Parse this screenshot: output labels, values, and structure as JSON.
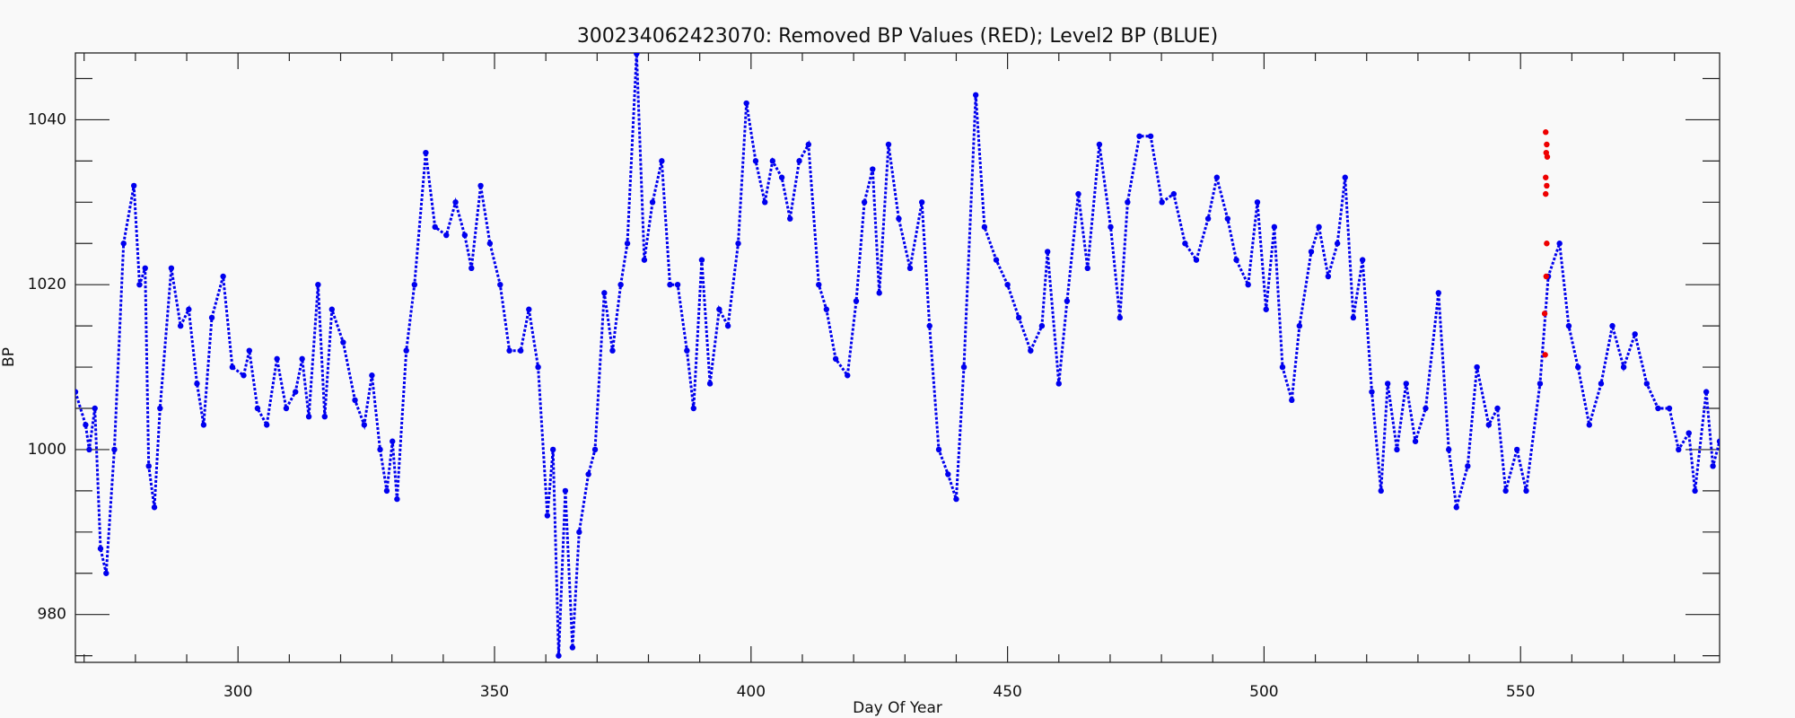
{
  "chart_data": {
    "type": "scatter",
    "title": "300234062423070: Removed BP Values (RED); Level2 BP (BLUE)",
    "xlabel": "Day Of Year",
    "ylabel": "BP",
    "xlim": [
      268.3,
      588.8
    ],
    "ylim": [
      974.2,
      1048.1
    ],
    "xticks": [
      300,
      350,
      400,
      450,
      500,
      550
    ],
    "yticks": [
      980,
      1000,
      1020,
      1040
    ],
    "xminorticks": [
      270,
      280,
      290,
      310,
      320,
      330,
      340,
      360,
      370,
      380,
      390,
      410,
      420,
      430,
      440,
      460,
      470,
      480,
      490,
      510,
      520,
      530,
      540,
      560,
      570,
      580
    ],
    "yminorticks": [
      975,
      985,
      990,
      995,
      1005,
      1010,
      1015,
      1025,
      1030,
      1035,
      1045
    ],
    "series": [
      {
        "name": "Level2 BP",
        "color": "#0000ee",
        "x": [
          268.3,
          270.3,
          271,
          272.1,
          273.2,
          274.3,
          275.9,
          277.7,
          279.7,
          280.8,
          281.9,
          282.6,
          283.7,
          284.8,
          287,
          288.8,
          290.4,
          292,
          293.3,
          294.9,
          297.1,
          298.9,
          301.1,
          302.2,
          303.8,
          305.6,
          307.6,
          309.4,
          311.2,
          312.5,
          313.8,
          315.6,
          316.9,
          318.3,
          320.5,
          322.8,
          324.6,
          326.1,
          327.7,
          329,
          330.1,
          331,
          332.8,
          334.4,
          336.6,
          338.4,
          340.6,
          342.4,
          344.2,
          345.5,
          347.3,
          349.1,
          351.1,
          352.9,
          355.1,
          356.7,
          358.5,
          360.3,
          361.4,
          362.5,
          363.8,
          365.2,
          366.5,
          368.3,
          369.6,
          371.4,
          373,
          374.6,
          375.9,
          377.7,
          379.2,
          380.8,
          382.6,
          384.2,
          385.7,
          387.5,
          388.8,
          390.4,
          392,
          393.8,
          395.5,
          397.5,
          399.1,
          400.9,
          402.7,
          404.2,
          406,
          407.6,
          409.4,
          411.2,
          413.2,
          414.7,
          416.5,
          418.8,
          420.5,
          422.1,
          423.7,
          425,
          426.8,
          428.8,
          431,
          433.3,
          434.8,
          436.6,
          438.4,
          440,
          441.5,
          443.8,
          445.5,
          447.8,
          450,
          452.2,
          454.5,
          456.7,
          457.8,
          460,
          461.6,
          463.8,
          465.6,
          467.9,
          470.1,
          471.9,
          473.4,
          475.7,
          477.9,
          480.1,
          482.4,
          484.6,
          486.8,
          489.1,
          490.8,
          492.9,
          494.6,
          496.9,
          498.7,
          500.4,
          502,
          503.6,
          505.4,
          506.9,
          509.2,
          510.7,
          512.5,
          514.3,
          515.8,
          517.4,
          519.2,
          521,
          522.8,
          524.1,
          525.9,
          527.7,
          529.5,
          531.5,
          534,
          536,
          537.5,
          539.7,
          541.5,
          543.8,
          545.5,
          547.1,
          549.3,
          551.1,
          553.8,
          555.4,
          557.6,
          559.4,
          561.2,
          563.4,
          565.7,
          567.9,
          570.1,
          572.3,
          574.6,
          576.8,
          579,
          580.8,
          582.8,
          584,
          586.2,
          587.5,
          588.8
        ],
        "values": [
          1007,
          1003,
          1000,
          1005,
          988,
          985,
          1000,
          1025,
          1032,
          1020,
          1022,
          998,
          993,
          1005,
          1022,
          1015,
          1017,
          1008,
          1003,
          1016,
          1021,
          1010,
          1009,
          1012,
          1005,
          1003,
          1011,
          1005,
          1007,
          1011,
          1004,
          1020,
          1004,
          1017,
          1013,
          1006,
          1003,
          1009,
          1000,
          995,
          1001,
          994,
          1012,
          1020,
          1036,
          1027,
          1026,
          1030,
          1026,
          1022,
          1032,
          1025,
          1020,
          1012,
          1012,
          1017,
          1010,
          992,
          1000,
          975,
          995,
          976,
          990,
          997,
          1000,
          1019,
          1012,
          1020,
          1025,
          1048,
          1023,
          1030,
          1035,
          1020,
          1020,
          1012,
          1005,
          1023,
          1008,
          1017,
          1015,
          1025,
          1042,
          1035,
          1030,
          1035,
          1033,
          1028,
          1035,
          1037,
          1020,
          1017,
          1011,
          1009,
          1018,
          1030,
          1034,
          1019,
          1037,
          1028,
          1022,
          1030,
          1015,
          1000,
          997,
          994,
          1010,
          1043,
          1027,
          1023,
          1020,
          1016,
          1012,
          1015,
          1024,
          1008,
          1018,
          1031,
          1022,
          1037,
          1027,
          1016,
          1030,
          1038,
          1038,
          1030,
          1031,
          1025,
          1023,
          1028,
          1033,
          1028,
          1023,
          1020,
          1030,
          1017,
          1027,
          1010,
          1006,
          1015,
          1024,
          1027,
          1021,
          1025,
          1033,
          1016,
          1023,
          1007,
          995,
          1008,
          1000,
          1008,
          1001,
          1005,
          1019,
          1000,
          993,
          998,
          1010,
          1003,
          1005,
          995,
          1000,
          995,
          1008,
          1021,
          1025,
          1015,
          1010,
          1003,
          1008,
          1015,
          1010,
          1014,
          1008,
          1005,
          1005,
          1000,
          1002,
          995,
          1007,
          998,
          1001
        ]
      },
      {
        "name": "Removed BP Values",
        "color": "#ee0000",
        "x": [
          554.9,
          555.1,
          555,
          555.2,
          554.9,
          555.1,
          554.9,
          555.1,
          555,
          554.7,
          554.8
        ],
        "values": [
          1038.5,
          1037,
          1036,
          1035.5,
          1033,
          1032,
          1031,
          1025,
          1021,
          1016.5,
          1011.5
        ]
      }
    ]
  }
}
